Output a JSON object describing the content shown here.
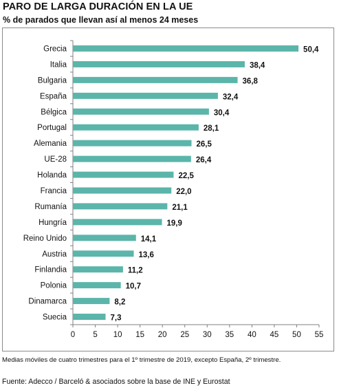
{
  "chart_data": {
    "type": "bar",
    "orientation": "horizontal",
    "title": "PARO DE LARGA DURACIÓN EN LA UE",
    "subtitle": "% de parados que llevan así al menos 24 meses",
    "categories": [
      "Grecia",
      "Italia",
      "Bulgaria",
      "España",
      "Bélgica",
      "Portugal",
      "Alemania",
      "UE-28",
      "Holanda",
      "Francia",
      "Rumanía",
      "Hungría",
      "Reino Unido",
      "Austria",
      "Finlandia",
      "Polonia",
      "Dinamarca",
      "Suecia"
    ],
    "values": [
      50.4,
      38.4,
      36.8,
      32.4,
      30.4,
      28.1,
      26.5,
      26.4,
      22.5,
      22.0,
      21.1,
      19.9,
      14.1,
      13.6,
      11.2,
      10.7,
      8.2,
      7.3
    ],
    "value_labels": [
      "50,4",
      "38,4",
      "36,8",
      "32,4",
      "30,4",
      "28,1",
      "26,5",
      "26,4",
      "22,5",
      "22,0",
      "21,1",
      "19,9",
      "14,1",
      "13,6",
      "11,2",
      "10,7",
      "8,2",
      "7,3"
    ],
    "xlim": [
      0,
      55
    ],
    "xticks": [
      0,
      5,
      10,
      15,
      20,
      25,
      30,
      35,
      40,
      45,
      50,
      55
    ],
    "bar_color": "#5bb5aa",
    "grid": false,
    "legend": "none"
  },
  "footnote": "Medias móviles de cuatro trimestres para el 1º trimestre de 2019, excepto España, 2º trimestre.",
  "source": "Fuente: Adecco / Barceló & asociados sobre la base de INE y Eurostat"
}
